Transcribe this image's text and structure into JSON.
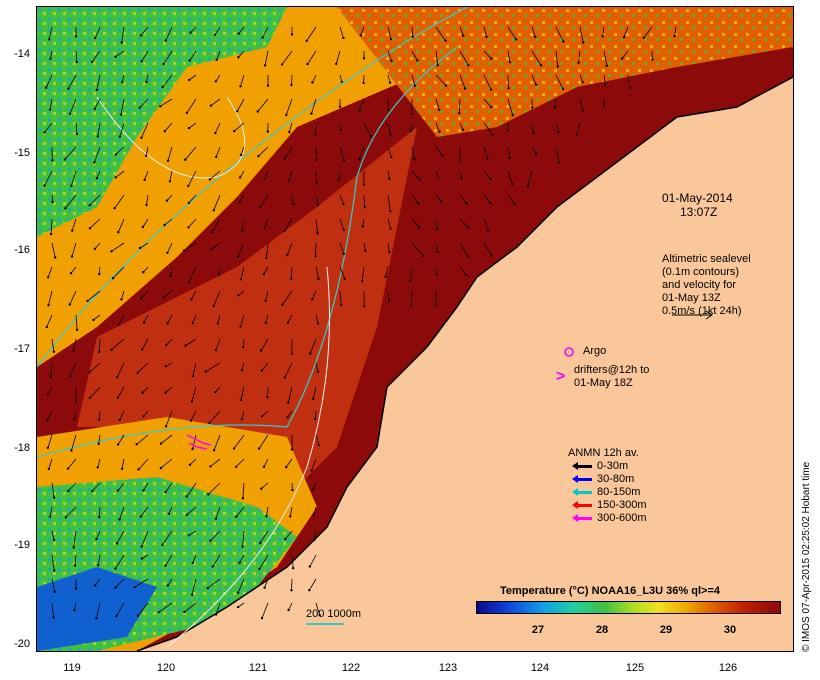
{
  "map": {
    "date_label": "01-May-2014",
    "time_label": "13:07Z",
    "lat_ticks": [
      "-14",
      "-15",
      "-16",
      "-17",
      "-18",
      "-19",
      "-20"
    ],
    "lon_ticks": [
      "119",
      "120",
      "121",
      "122",
      "123",
      "124",
      "125",
      "126"
    ],
    "colors": {
      "land": "#f9c79a",
      "sst_warm": "#8c0a0a",
      "sst_mid": "#f0a000",
      "sst_cool": "#40c040",
      "contour": "#3cc8c8"
    }
  },
  "altimetry_note": {
    "line1": "Altimetric sealevel",
    "line2": "(0.1m contours)",
    "line3": "and velocity for",
    "line4": "01-May 13Z",
    "line5": "0.5m/s (1kt 24h)"
  },
  "argo": {
    "label": "Argo",
    "color": "#ff00ff"
  },
  "drifters": {
    "line1": "drifters@12h to",
    "line2": "01-May 18Z",
    "color": "#ff00ff"
  },
  "anmn_legend": {
    "title": "ANMN 12h av.",
    "items": [
      {
        "label": "0-30m",
        "color": "#000000"
      },
      {
        "label": "30-80m",
        "color": "#0000ff"
      },
      {
        "label": "80-150m",
        "color": "#00c8c8"
      },
      {
        "label": "150-300m",
        "color": "#ff0000"
      },
      {
        "label": "300-600m",
        "color": "#ff00ff"
      }
    ]
  },
  "colorbar": {
    "title": "Temperature (°C) NOAA16_L3U 36% ql>=4",
    "ticks": [
      "27",
      "28",
      "29",
      "30"
    ]
  },
  "scalebar": {
    "label": "200  1000m"
  },
  "credit": "© IMOS 07-Apr-2015 02:25:02 Hobart time"
}
